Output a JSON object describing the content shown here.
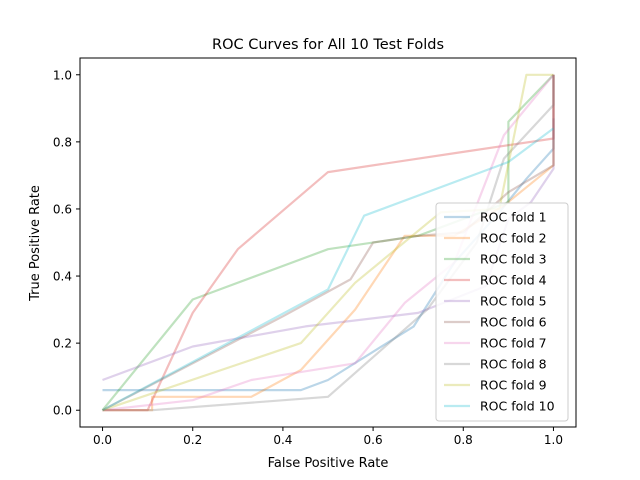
{
  "chart_data": {
    "type": "line",
    "title": "ROC Curves for All 10 Test Folds",
    "xlabel": "False Positive Rate",
    "ylabel": "True Positive Rate",
    "xlim": [
      -0.05,
      1.05
    ],
    "ylim": [
      -0.05,
      1.05
    ],
    "xticks": [
      "0.0",
      "0.2",
      "0.4",
      "0.6",
      "0.8",
      "1.0"
    ],
    "yticks": [
      "0.0",
      "0.2",
      "0.4",
      "0.6",
      "0.8",
      "1.0"
    ],
    "grid": false,
    "legend_position": "lower right",
    "series": [
      {
        "name": "ROC fold 1",
        "color": "#1f77b4",
        "points": [
          [
            0,
            0.06
          ],
          [
            0.44,
            0.06
          ],
          [
            0.5,
            0.09
          ],
          [
            0.69,
            0.25
          ],
          [
            0.78,
            0.44
          ],
          [
            0.88,
            0.59
          ],
          [
            0.94,
            0.69
          ],
          [
            1.0,
            0.78
          ],
          [
            1.0,
            0.87
          ]
        ]
      },
      {
        "name": "ROC fold 2",
        "color": "#ff7f0e",
        "points": [
          [
            0,
            0
          ],
          [
            0.11,
            0
          ],
          [
            0.11,
            0.04
          ],
          [
            0.33,
            0.04
          ],
          [
            0.44,
            0.12
          ],
          [
            0.56,
            0.3
          ],
          [
            0.67,
            0.52
          ],
          [
            0.78,
            0.52
          ],
          [
            0.89,
            0.61
          ],
          [
            1.0,
            0.73
          ],
          [
            1.0,
            1.0
          ]
        ]
      },
      {
        "name": "ROC fold 3",
        "color": "#2ca02c",
        "points": [
          [
            0,
            0
          ],
          [
            0.2,
            0.33
          ],
          [
            0.5,
            0.48
          ],
          [
            0.7,
            0.52
          ],
          [
            0.8,
            0.57
          ],
          [
            0.9,
            0.62
          ],
          [
            0.9,
            0.86
          ],
          [
            1.0,
            1.0
          ]
        ]
      },
      {
        "name": "ROC fold 4",
        "color": "#d62728",
        "points": [
          [
            0,
            0
          ],
          [
            0.1,
            0
          ],
          [
            0.2,
            0.29
          ],
          [
            0.3,
            0.48
          ],
          [
            0.5,
            0.71
          ],
          [
            0.8,
            0.77
          ],
          [
            0.9,
            0.79
          ],
          [
            1.0,
            0.81
          ],
          [
            1.0,
            1.0
          ]
        ]
      },
      {
        "name": "ROC fold 5",
        "color": "#9467bd",
        "points": [
          [
            0,
            0.09
          ],
          [
            0.2,
            0.19
          ],
          [
            0.45,
            0.25
          ],
          [
            0.7,
            0.29
          ],
          [
            0.85,
            0.37
          ],
          [
            0.9,
            0.57
          ],
          [
            0.95,
            0.62
          ],
          [
            1.0,
            0.72
          ],
          [
            1.0,
            1.0
          ]
        ]
      },
      {
        "name": "ROC fold 6",
        "color": "#8c564b",
        "points": [
          [
            0,
            0
          ],
          [
            0.2,
            0.14
          ],
          [
            0.4,
            0.28
          ],
          [
            0.55,
            0.39
          ],
          [
            0.6,
            0.5
          ],
          [
            0.7,
            0.52
          ],
          [
            0.8,
            0.53
          ],
          [
            0.9,
            0.65
          ],
          [
            1.0,
            0.73
          ],
          [
            1.0,
            1.0
          ]
        ]
      },
      {
        "name": "ROC fold 7",
        "color": "#e377c2",
        "points": [
          [
            0,
            0
          ],
          [
            0.2,
            0.03
          ],
          [
            0.33,
            0.09
          ],
          [
            0.56,
            0.14
          ],
          [
            0.67,
            0.32
          ],
          [
            0.78,
            0.44
          ],
          [
            0.89,
            0.82
          ],
          [
            1.0,
            1.0
          ]
        ]
      },
      {
        "name": "ROC fold 8",
        "color": "#7f7f7f",
        "points": [
          [
            0,
            0
          ],
          [
            0.11,
            0
          ],
          [
            0.5,
            0.04
          ],
          [
            0.72,
            0.3
          ],
          [
            0.83,
            0.5
          ],
          [
            0.89,
            0.75
          ],
          [
            1.0,
            0.91
          ],
          [
            1.0,
            1.0
          ]
        ]
      },
      {
        "name": "ROC fold 9",
        "color": "#bcbd22",
        "points": [
          [
            0,
            0
          ],
          [
            0.44,
            0.2
          ],
          [
            0.56,
            0.38
          ],
          [
            0.75,
            0.59
          ],
          [
            0.88,
            0.6
          ],
          [
            0.94,
            1.0
          ],
          [
            1.0,
            1.0
          ]
        ]
      },
      {
        "name": "ROC fold 10",
        "color": "#17becf",
        "points": [
          [
            0,
            0
          ],
          [
            0.5,
            0.36
          ],
          [
            0.58,
            0.58
          ],
          [
            0.9,
            0.74
          ],
          [
            1.0,
            0.84
          ]
        ]
      }
    ]
  }
}
